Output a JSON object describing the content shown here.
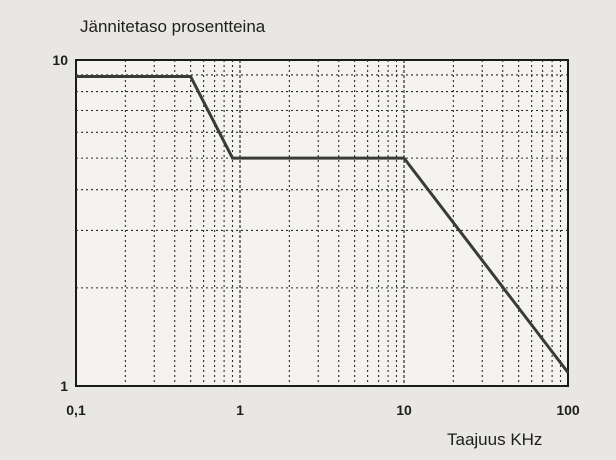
{
  "chart_data": {
    "type": "line",
    "title": "Jännitetaso prosentteina",
    "xlabel": "Taajuus KHz",
    "ylabel": "",
    "x_scale": "log",
    "y_scale": "log",
    "xlim": [
      0.1,
      100
    ],
    "ylim": [
      1,
      10
    ],
    "x_tick_labels": [
      "0,1",
      "1",
      "10",
      "100"
    ],
    "x_tick_values": [
      0.1,
      1,
      10,
      100
    ],
    "y_tick_labels": [
      "10",
      "1"
    ],
    "y_tick_values": [
      10,
      1
    ],
    "grid": true,
    "series": [
      {
        "x": [
          0.1,
          0.5,
          0.9,
          10,
          100
        ],
        "y": [
          8.9,
          8.9,
          5.0,
          5.0,
          1.1
        ]
      }
    ]
  }
}
